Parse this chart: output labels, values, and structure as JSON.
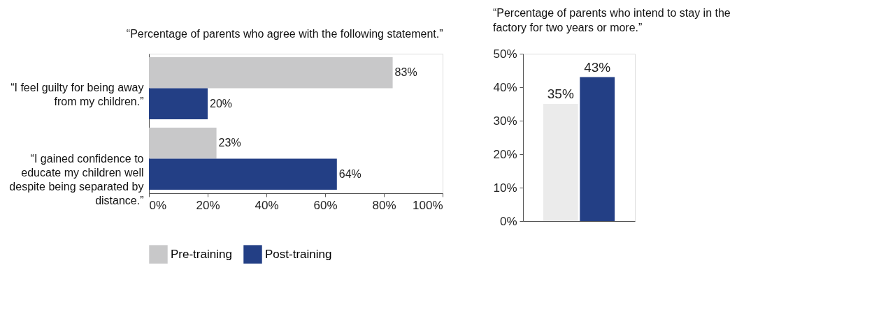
{
  "chart_data": [
    {
      "type": "bar",
      "orientation": "horizontal",
      "title": "“Percentage of parents who agree with the following statement.”",
      "categories": [
        "“I feel guilty for being away from my children.”",
        "“I gained confidence to educate my children well despite being separated by distance.”"
      ],
      "series": [
        {
          "name": "Pre-training",
          "color": "#c8c8c9",
          "values": [
            83,
            23
          ],
          "value_labels": [
            "83%",
            "23%"
          ]
        },
        {
          "name": "Post-training",
          "color": "#233f85",
          "values": [
            20,
            64
          ],
          "value_labels": [
            "20%",
            "64%"
          ]
        }
      ],
      "xlim": [
        0,
        100
      ],
      "xticks": [
        {
          "value": 0,
          "label": "0%"
        },
        {
          "value": 20,
          "label": "20%"
        },
        {
          "value": 40,
          "label": "40%"
        },
        {
          "value": 60,
          "label": "60%"
        },
        {
          "value": 80,
          "label": "80%"
        },
        {
          "value": 100,
          "label": "100%"
        }
      ],
      "legend": "bottom",
      "grid": false
    },
    {
      "type": "bar",
      "title": "“Percentage of parents who intend to stay in the factory for two years or more.”",
      "categories": [
        null,
        null
      ],
      "values": [
        35,
        43
      ],
      "colors": [
        "#ebebeb",
        "#233f85"
      ],
      "value_labels": [
        "35%",
        "43%"
      ],
      "ylim": [
        0,
        50
      ],
      "yticks": [
        {
          "value": 0,
          "label": "0%"
        },
        {
          "value": 10,
          "label": "10%"
        },
        {
          "value": 20,
          "label": "20%"
        },
        {
          "value": 30,
          "label": "30%"
        },
        {
          "value": 40,
          "label": "40%"
        },
        {
          "value": 50,
          "label": "50%"
        }
      ],
      "tick_labels": "y",
      "grid": false
    }
  ]
}
